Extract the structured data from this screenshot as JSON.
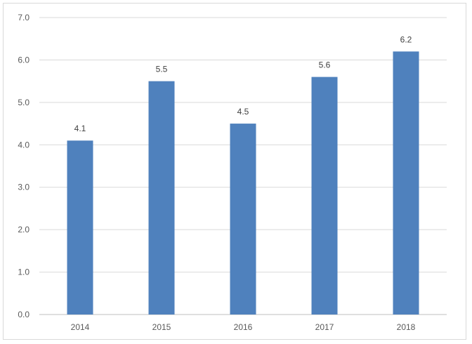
{
  "chart_data": {
    "type": "bar",
    "title": "",
    "xlabel": "",
    "ylabel": "",
    "categories": [
      "2014",
      "2015",
      "2016",
      "2017",
      "2018"
    ],
    "values": [
      4.1,
      5.5,
      4.5,
      5.6,
      6.2
    ],
    "data_labels": [
      "4.1",
      "5.5",
      "4.5",
      "5.6",
      "6.2"
    ],
    "ylim": [
      0,
      7
    ],
    "yticks": [
      "0.0",
      "1.0",
      "2.0",
      "3.0",
      "4.0",
      "5.0",
      "6.0",
      "7.0"
    ],
    "grid": true,
    "legend": "none",
    "bar_color": "#4f81bd"
  }
}
